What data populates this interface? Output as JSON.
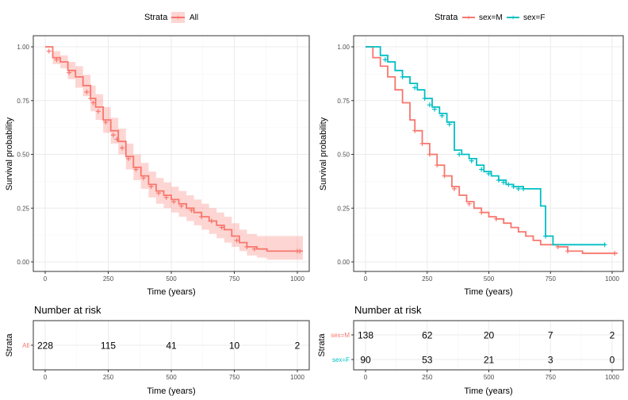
{
  "colors": {
    "all": "#F8766D",
    "male": "#F8766D",
    "female": "#00BFC4",
    "grid": "#EBEBEB",
    "axis": "#333333"
  },
  "left": {
    "legend": {
      "title": "Strata",
      "entries": [
        {
          "name": "All",
          "color": "#F8766D"
        }
      ]
    },
    "chart_data": {
      "type": "line",
      "ylabel": "Survival probability",
      "xlabel": "Time (years)",
      "xlim": [
        0,
        1022
      ],
      "ylim": [
        0,
        1
      ],
      "xticks": [
        "0",
        "250",
        "500",
        "750",
        "1000"
      ],
      "yticks": [
        "0.00",
        "0.25",
        "0.50",
        "0.75",
        "1.00"
      ],
      "grid": true,
      "legend_position": "top",
      "confidence_band": true,
      "series": [
        {
          "name": "All",
          "color": "#F8766D",
          "points": [
            [
              0,
              1.0
            ],
            [
              30,
              0.95
            ],
            [
              60,
              0.93
            ],
            [
              90,
              0.89
            ],
            [
              120,
              0.86
            ],
            [
              150,
              0.82
            ],
            [
              180,
              0.76
            ],
            [
              200,
              0.72
            ],
            [
              230,
              0.66
            ],
            [
              260,
              0.61
            ],
            [
              290,
              0.56
            ],
            [
              320,
              0.49
            ],
            [
              350,
              0.44
            ],
            [
              380,
              0.4
            ],
            [
              410,
              0.36
            ],
            [
              440,
              0.33
            ],
            [
              470,
              0.31
            ],
            [
              500,
              0.29
            ],
            [
              530,
              0.27
            ],
            [
              560,
              0.25
            ],
            [
              590,
              0.23
            ],
            [
              620,
              0.21
            ],
            [
              650,
              0.19
            ],
            [
              680,
              0.17
            ],
            [
              710,
              0.15
            ],
            [
              740,
              0.12
            ],
            [
              770,
              0.09
            ],
            [
              800,
              0.07
            ],
            [
              840,
              0.06
            ],
            [
              880,
              0.05
            ],
            [
              950,
              0.05
            ],
            [
              1022,
              0.05
            ]
          ],
          "lower": [
            [
              0,
              1.0
            ],
            [
              30,
              0.92
            ],
            [
              60,
              0.9
            ],
            [
              90,
              0.85
            ],
            [
              120,
              0.81
            ],
            [
              150,
              0.77
            ],
            [
              180,
              0.7
            ],
            [
              200,
              0.66
            ],
            [
              230,
              0.6
            ],
            [
              260,
              0.55
            ],
            [
              290,
              0.5
            ],
            [
              320,
              0.43
            ],
            [
              350,
              0.38
            ],
            [
              380,
              0.34
            ],
            [
              410,
              0.3
            ],
            [
              440,
              0.27
            ],
            [
              470,
              0.25
            ],
            [
              500,
              0.23
            ],
            [
              530,
              0.21
            ],
            [
              560,
              0.19
            ],
            [
              590,
              0.17
            ],
            [
              620,
              0.15
            ],
            [
              650,
              0.13
            ],
            [
              680,
              0.11
            ],
            [
              710,
              0.09
            ],
            [
              740,
              0.07
            ],
            [
              770,
              0.05
            ],
            [
              800,
              0.03
            ],
            [
              840,
              0.02
            ],
            [
              880,
              0.01
            ],
            [
              1022,
              0.01
            ]
          ],
          "upper": [
            [
              0,
              1.0
            ],
            [
              30,
              0.98
            ],
            [
              60,
              0.96
            ],
            [
              90,
              0.93
            ],
            [
              120,
              0.91
            ],
            [
              150,
              0.87
            ],
            [
              180,
              0.82
            ],
            [
              200,
              0.78
            ],
            [
              230,
              0.72
            ],
            [
              260,
              0.67
            ],
            [
              290,
              0.62
            ],
            [
              320,
              0.55
            ],
            [
              350,
              0.5
            ],
            [
              380,
              0.46
            ],
            [
              410,
              0.42
            ],
            [
              440,
              0.39
            ],
            [
              470,
              0.37
            ],
            [
              500,
              0.35
            ],
            [
              530,
              0.33
            ],
            [
              560,
              0.31
            ],
            [
              590,
              0.29
            ],
            [
              620,
              0.27
            ],
            [
              650,
              0.25
            ],
            [
              680,
              0.23
            ],
            [
              710,
              0.21
            ],
            [
              740,
              0.18
            ],
            [
              770,
              0.15
            ],
            [
              800,
              0.13
            ],
            [
              840,
              0.12
            ],
            [
              880,
              0.12
            ],
            [
              1022,
              0.12
            ]
          ],
          "censored": [
            [
              15,
              0.98
            ],
            [
              45,
              0.94
            ],
            [
              95,
              0.88
            ],
            [
              165,
              0.79
            ],
            [
              180,
              0.76
            ],
            [
              190,
              0.74
            ],
            [
              210,
              0.7
            ],
            [
              240,
              0.65
            ],
            [
              270,
              0.59
            ],
            [
              285,
              0.57
            ],
            [
              305,
              0.53
            ],
            [
              330,
              0.48
            ],
            [
              360,
              0.43
            ],
            [
              390,
              0.39
            ],
            [
              420,
              0.35
            ],
            [
              450,
              0.32
            ],
            [
              480,
              0.3
            ],
            [
              510,
              0.28
            ],
            [
              540,
              0.26
            ],
            [
              580,
              0.24
            ],
            [
              620,
              0.21
            ],
            [
              660,
              0.19
            ],
            [
              700,
              0.16
            ],
            [
              760,
              0.1
            ],
            [
              800,
              0.07
            ],
            [
              830,
              0.06
            ],
            [
              1000,
              0.05
            ],
            [
              1010,
              0.05
            ]
          ]
        }
      ]
    },
    "risk": {
      "title": "Number at risk",
      "ylabel": "Strata",
      "xlabel": "Time (years)",
      "xticks": [
        "0",
        "250",
        "500",
        "750",
        "1000"
      ],
      "rows": [
        {
          "label": "All",
          "color": "#F8766D",
          "counts": [
            "228",
            "115",
            "41",
            "10",
            "2"
          ]
        }
      ]
    }
  },
  "right": {
    "legend": {
      "title": "Strata",
      "entries": [
        {
          "name": "sex=M",
          "color": "#F8766D"
        },
        {
          "name": "sex=F",
          "color": "#00BFC4"
        }
      ]
    },
    "chart_data": {
      "type": "line",
      "ylabel": "Survival probability",
      "xlabel": "Time (years)",
      "xlim": [
        0,
        1022
      ],
      "ylim": [
        0,
        1
      ],
      "xticks": [
        "0",
        "250",
        "500",
        "750",
        "1000"
      ],
      "yticks": [
        "0.00",
        "0.25",
        "0.50",
        "0.75",
        "1.00"
      ],
      "grid": true,
      "legend_position": "top",
      "series": [
        {
          "name": "sex=M",
          "color": "#F8766D",
          "points": [
            [
              0,
              1.0
            ],
            [
              30,
              0.95
            ],
            [
              60,
              0.91
            ],
            [
              90,
              0.86
            ],
            [
              120,
              0.8
            ],
            [
              150,
              0.74
            ],
            [
              180,
              0.66
            ],
            [
              200,
              0.61
            ],
            [
              230,
              0.55
            ],
            [
              260,
              0.5
            ],
            [
              290,
              0.45
            ],
            [
              320,
              0.4
            ],
            [
              350,
              0.35
            ],
            [
              380,
              0.31
            ],
            [
              410,
              0.28
            ],
            [
              440,
              0.25
            ],
            [
              470,
              0.23
            ],
            [
              500,
              0.21
            ],
            [
              530,
              0.2
            ],
            [
              560,
              0.18
            ],
            [
              590,
              0.16
            ],
            [
              620,
              0.14
            ],
            [
              650,
              0.12
            ],
            [
              680,
              0.1
            ],
            [
              710,
              0.08
            ],
            [
              740,
              0.08
            ],
            [
              780,
              0.07
            ],
            [
              820,
              0.05
            ],
            [
              880,
              0.04
            ],
            [
              1022,
              0.04
            ]
          ],
          "censored": [
            [
              200,
              0.61
            ],
            [
              230,
              0.55
            ],
            [
              260,
              0.5
            ],
            [
              290,
              0.45
            ],
            [
              320,
              0.4
            ],
            [
              360,
              0.34
            ],
            [
              420,
              0.27
            ],
            [
              470,
              0.23
            ],
            [
              530,
              0.2
            ],
            [
              780,
              0.07
            ],
            [
              820,
              0.05
            ],
            [
              1010,
              0.04
            ]
          ]
        },
        {
          "name": "sex=F",
          "color": "#00BFC4",
          "points": [
            [
              0,
              1.0
            ],
            [
              60,
              0.96
            ],
            [
              90,
              0.93
            ],
            [
              120,
              0.89
            ],
            [
              150,
              0.86
            ],
            [
              180,
              0.83
            ],
            [
              210,
              0.8
            ],
            [
              240,
              0.76
            ],
            [
              270,
              0.72
            ],
            [
              300,
              0.69
            ],
            [
              330,
              0.65
            ],
            [
              360,
              0.52
            ],
            [
              390,
              0.5
            ],
            [
              420,
              0.48
            ],
            [
              450,
              0.45
            ],
            [
              480,
              0.42
            ],
            [
              510,
              0.4
            ],
            [
              540,
              0.38
            ],
            [
              570,
              0.36
            ],
            [
              600,
              0.35
            ],
            [
              640,
              0.34
            ],
            [
              680,
              0.34
            ],
            [
              710,
              0.26
            ],
            [
              730,
              0.12
            ],
            [
              760,
              0.08
            ],
            [
              800,
              0.08
            ],
            [
              900,
              0.08
            ],
            [
              970,
              0.08
            ]
          ],
          "censored": [
            [
              80,
              0.94
            ],
            [
              150,
              0.86
            ],
            [
              200,
              0.81
            ],
            [
              240,
              0.76
            ],
            [
              260,
              0.73
            ],
            [
              280,
              0.71
            ],
            [
              310,
              0.68
            ],
            [
              340,
              0.64
            ],
            [
              380,
              0.5
            ],
            [
              430,
              0.47
            ],
            [
              470,
              0.43
            ],
            [
              500,
              0.41
            ],
            [
              540,
              0.38
            ],
            [
              560,
              0.37
            ],
            [
              580,
              0.36
            ],
            [
              600,
              0.35
            ],
            [
              620,
              0.34
            ],
            [
              640,
              0.34
            ],
            [
              730,
              0.12
            ],
            [
              970,
              0.08
            ]
          ]
        }
      ]
    },
    "risk": {
      "title": "Number at risk",
      "ylabel": "Strata",
      "xlabel": "Time (years)",
      "xticks": [
        "0",
        "250",
        "500",
        "750",
        "1000"
      ],
      "rows": [
        {
          "label": "sex=M",
          "color": "#F8766D",
          "counts": [
            "138",
            "62",
            "20",
            "7",
            "2"
          ]
        },
        {
          "label": "sex=F",
          "color": "#00BFC4",
          "counts": [
            "90",
            "53",
            "21",
            "3",
            "0"
          ]
        }
      ]
    }
  }
}
